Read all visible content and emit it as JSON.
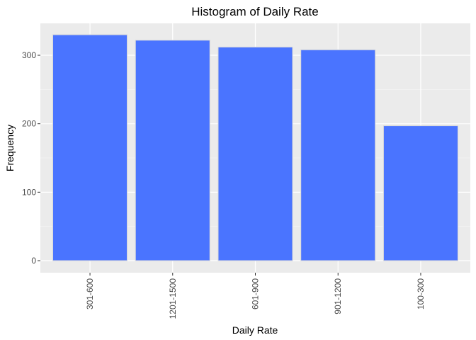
{
  "chart_data": {
    "type": "bar",
    "title": "Histogram of Daily Rate",
    "xlabel": "Daily Rate",
    "ylabel": "Frequency",
    "categories": [
      "301-600",
      "1201-1500",
      "601-900",
      "901-1200",
      "100-300"
    ],
    "values": [
      330,
      322,
      312,
      308,
      197
    ],
    "ylim": [
      0,
      345
    ],
    "yticks": [
      0,
      100,
      200,
      300
    ],
    "grid": true,
    "legend": "none",
    "colors": {
      "bar_fill": "#4a74ff",
      "bar_outline": "#d9d9d9",
      "panel_background": "#ebebeb",
      "grid_major": "#ffffff",
      "grid_minor": "#f5f5f5"
    }
  }
}
